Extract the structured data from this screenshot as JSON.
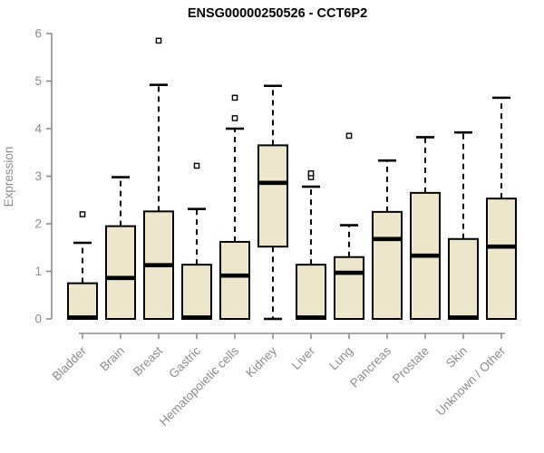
{
  "chart_data": {
    "type": "boxplot",
    "title": "ENSG00000250526 - CCT6P2",
    "ylabel": "Expression",
    "xlabel": "",
    "ylim": [
      0,
      6
    ],
    "yticks": [
      0,
      1,
      2,
      3,
      4,
      5,
      6
    ],
    "grid": false,
    "legend": null,
    "categories": [
      "Bladder",
      "Brain",
      "Breast",
      "Gastric",
      "Hematopoietic cells",
      "Kidney",
      "Liver",
      "Lung",
      "Pancreas",
      "Prostate",
      "Skin",
      "Unknown / Other"
    ],
    "boxes": [
      {
        "category": "Bladder",
        "whisker_low": 0,
        "q1": 0,
        "median": 0.03,
        "q3": 0.75,
        "whisker_high": 1.6,
        "outliers": [
          2.2
        ]
      },
      {
        "category": "Brain",
        "whisker_low": 0,
        "q1": 0,
        "median": 0.86,
        "q3": 1.95,
        "whisker_high": 2.98,
        "outliers": []
      },
      {
        "category": "Breast",
        "whisker_low": 0,
        "q1": 0,
        "median": 1.13,
        "q3": 2.26,
        "whisker_high": 4.92,
        "outliers": [
          5.85
        ]
      },
      {
        "category": "Gastric",
        "whisker_low": 0,
        "q1": 0,
        "median": 0.03,
        "q3": 1.14,
        "whisker_high": 2.31,
        "outliers": [
          3.22
        ]
      },
      {
        "category": "Hematopoietic cells",
        "whisker_low": 0,
        "q1": 0,
        "median": 0.91,
        "q3": 1.62,
        "whisker_high": 4.0,
        "outliers": [
          4.22,
          4.65
        ]
      },
      {
        "category": "Kidney",
        "whisker_low": 0,
        "q1": 1.52,
        "median": 2.86,
        "q3": 3.65,
        "whisker_high": 4.9,
        "outliers": []
      },
      {
        "category": "Liver",
        "whisker_low": 0,
        "q1": 0,
        "median": 0.03,
        "q3": 1.14,
        "whisker_high": 2.78,
        "outliers": [
          2.98,
          3.06
        ]
      },
      {
        "category": "Lung",
        "whisker_low": 0,
        "q1": 0,
        "median": 0.97,
        "q3": 1.3,
        "whisker_high": 1.97,
        "outliers": [
          3.85
        ]
      },
      {
        "category": "Pancreas",
        "whisker_low": 0,
        "q1": 0,
        "median": 1.68,
        "q3": 2.25,
        "whisker_high": 3.33,
        "outliers": []
      },
      {
        "category": "Prostate",
        "whisker_low": 0,
        "q1": 0,
        "median": 1.33,
        "q3": 2.65,
        "whisker_high": 3.82,
        "outliers": []
      },
      {
        "category": "Skin",
        "whisker_low": 0,
        "q1": 0,
        "median": 0.03,
        "q3": 1.68,
        "whisker_high": 3.92,
        "outliers": []
      },
      {
        "category": "Unknown / Other",
        "whisker_low": 0,
        "q1": 0,
        "median": 1.52,
        "q3": 2.53,
        "whisker_high": 4.65,
        "outliers": []
      }
    ],
    "colors": {
      "box_fill": "#EDE6CA",
      "box_stroke": "#000000",
      "median": "#000000",
      "whisker": "#000000",
      "outlier_fill": "#ffffff",
      "outlier_stroke": "#000000",
      "axis": "#8C8C8C",
      "tick_label": "#8C8C8C",
      "title": "#000000",
      "background": "#ffffff"
    }
  }
}
